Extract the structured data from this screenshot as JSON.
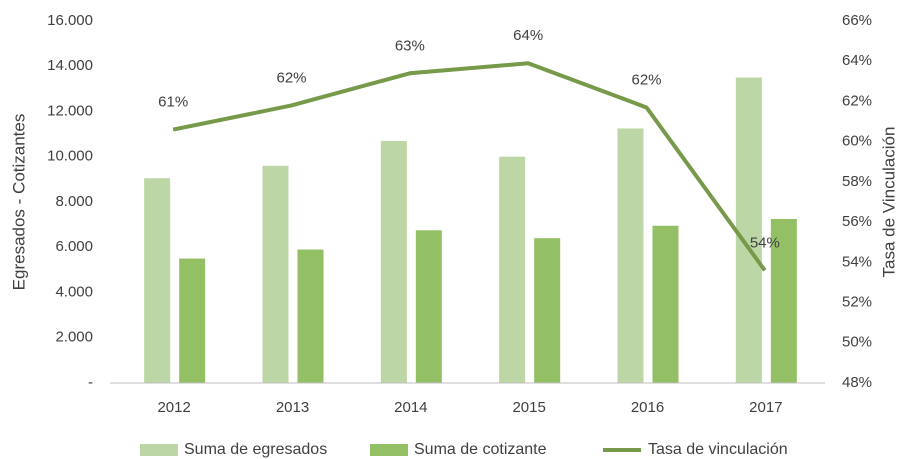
{
  "chart_data": {
    "type": "bar-line",
    "categories": [
      "2012",
      "2013",
      "2014",
      "2015",
      "2016",
      "2017"
    ],
    "ylabel": "Egresados - Cotizantes",
    "y2label": "Tasa de Vinculación",
    "ylim": [
      0,
      16000
    ],
    "yticks": [
      {
        "value": 0,
        "label": "-"
      },
      {
        "value": 2000,
        "label": "2.000"
      },
      {
        "value": 4000,
        "label": "4.000"
      },
      {
        "value": 6000,
        "label": "6.000"
      },
      {
        "value": 8000,
        "label": "8.000"
      },
      {
        "value": 10000,
        "label": "10.000"
      },
      {
        "value": 12000,
        "label": "12.000"
      },
      {
        "value": 14000,
        "label": "14.000"
      },
      {
        "value": 16000,
        "label": "16.000"
      }
    ],
    "y2lim": [
      48,
      66
    ],
    "y2ticks": [
      {
        "value": 48,
        "label": "48%"
      },
      {
        "value": 50,
        "label": "50%"
      },
      {
        "value": 52,
        "label": "52%"
      },
      {
        "value": 54,
        "label": "54%"
      },
      {
        "value": 56,
        "label": "56%"
      },
      {
        "value": 58,
        "label": "58%"
      },
      {
        "value": 60,
        "label": "60%"
      },
      {
        "value": 62,
        "label": "62%"
      },
      {
        "value": 64,
        "label": "64%"
      },
      {
        "value": 66,
        "label": "66%"
      }
    ],
    "series": [
      {
        "name": "Suma de egresados",
        "type": "bar",
        "color": "#bdd6a5",
        "values": [
          9050,
          9600,
          10700,
          10000,
          11250,
          13500
        ]
      },
      {
        "name": "Suma de cotizante",
        "type": "bar",
        "color": "#93bf65",
        "values": [
          5500,
          5900,
          6750,
          6400,
          6950,
          7250
        ]
      },
      {
        "name": "Tasa de vinculación",
        "type": "line",
        "axis": "y2",
        "color": "#76994a",
        "values": [
          60.6,
          61.8,
          63.4,
          63.9,
          61.7,
          53.6
        ],
        "value_labels": [
          "61%",
          "62%",
          "63%",
          "64%",
          "62%",
          "54%"
        ]
      }
    ],
    "legend": "bottom"
  }
}
